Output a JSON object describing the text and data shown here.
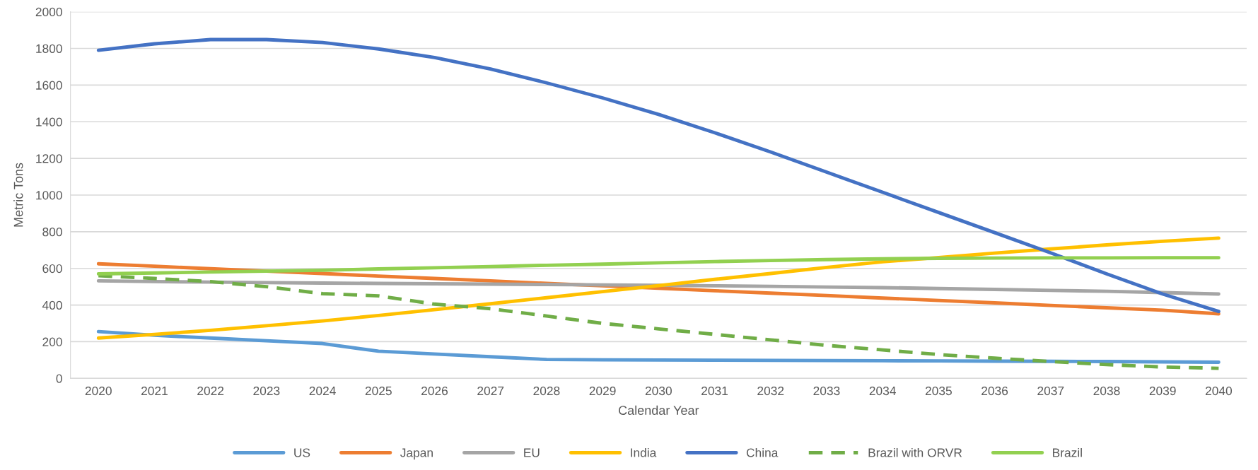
{
  "chart_data": {
    "type": "line",
    "xlabel": "Calendar Year",
    "ylabel": "Metric Tons",
    "categories": [
      "2020",
      "2021",
      "2022",
      "2023",
      "2024",
      "2025",
      "2026",
      "2027",
      "2028",
      "2029",
      "2030",
      "2031",
      "2032",
      "2033",
      "2034",
      "2035",
      "2036",
      "2037",
      "2038",
      "2039",
      "2040"
    ],
    "ylim": [
      0,
      2000
    ],
    "yticks": [
      0,
      200,
      400,
      600,
      800,
      1000,
      1200,
      1400,
      1600,
      1800,
      2000
    ],
    "grid": "y",
    "legend": "bottom",
    "line_style": "solid",
    "marker": "none",
    "series": [
      {
        "name": "US",
        "color": "#5b9bd5",
        "values": [
          255,
          235,
          220,
          205,
          190,
          148,
          133,
          118,
          103,
          101,
          100,
          99,
          98,
          97,
          96,
          95,
          94,
          93,
          92,
          90,
          88
        ]
      },
      {
        "name": "Japan",
        "color": "#ed7d31",
        "values": [
          625,
          612,
          598,
          585,
          572,
          558,
          545,
          532,
          518,
          505,
          492,
          478,
          465,
          452,
          438,
          425,
          412,
          398,
          385,
          372,
          352
        ]
      },
      {
        "name": "EU",
        "color": "#a5a5a5",
        "values": [
          532,
          528,
          525,
          522,
          520,
          518,
          516,
          514,
          512,
          510,
          508,
          505,
          502,
          498,
          495,
          490,
          485,
          480,
          475,
          468,
          460
        ]
      },
      {
        "name": "India",
        "color": "#ffc000",
        "values": [
          220,
          240,
          262,
          287,
          313,
          343,
          375,
          407,
          440,
          473,
          506,
          540,
          572,
          605,
          636,
          659,
          683,
          706,
          728,
          748,
          765
        ]
      },
      {
        "name": "China",
        "color": "#4472c4",
        "values": [
          1790,
          1825,
          1848,
          1848,
          1832,
          1797,
          1750,
          1688,
          1612,
          1530,
          1440,
          1340,
          1235,
          1125,
          1015,
          905,
          795,
          685,
          570,
          460,
          365
        ]
      },
      {
        "name": "Brazil with ORVR",
        "color": "#70ad47",
        "line_style": "dashed",
        "values": [
          560,
          545,
          528,
          500,
          462,
          450,
          405,
          380,
          340,
          300,
          270,
          240,
          210,
          180,
          155,
          130,
          110,
          92,
          75,
          62,
          55
        ]
      },
      {
        "name": "Brazil",
        "color": "#92d050",
        "values": [
          570,
          575,
          580,
          585,
          590,
          597,
          603,
          610,
          617,
          623,
          630,
          637,
          643,
          648,
          652,
          655,
          656,
          657,
          657,
          658,
          658
        ]
      }
    ]
  }
}
